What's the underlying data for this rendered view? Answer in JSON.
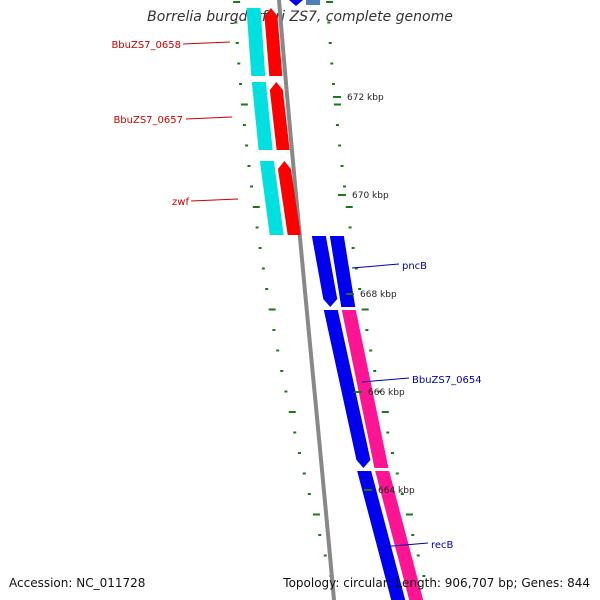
{
  "title": "Borrelia burgdorferi ZS7, complete genome",
  "accession": "Accession: NC_011728",
  "topology": "Topology: circular; Length: 906,707 bp; Genes: 844",
  "colors": {
    "reverse_outer": "#ff0000",
    "reverse_inner": "#00e0e0",
    "forward_outer": "#0000ee",
    "forward_inner": "#ff1493",
    "backbone": "#888888",
    "ticks": "#1a7a1a",
    "reverse_label": "#cc0000",
    "forward_label": "#0000aa"
  },
  "scale_labels": [
    {
      "kbp": 672,
      "text": "672 kbp"
    },
    {
      "kbp": 670,
      "text": "670 kbp"
    },
    {
      "kbp": 668,
      "text": "668 kbp"
    },
    {
      "kbp": 666,
      "text": "666 kbp"
    },
    {
      "kbp": 664,
      "text": "664 kbp"
    }
  ],
  "genes": [
    {
      "name": "BbuZS7_0658",
      "strand": "reverse"
    },
    {
      "name": "BbuZS7_0657",
      "strand": "reverse"
    },
    {
      "name": "zwf",
      "strand": "reverse"
    },
    {
      "name": "pncB",
      "strand": "forward"
    },
    {
      "name": "BbuZS7_0654",
      "strand": "forward"
    },
    {
      "name": "recB",
      "strand": "forward"
    }
  ]
}
